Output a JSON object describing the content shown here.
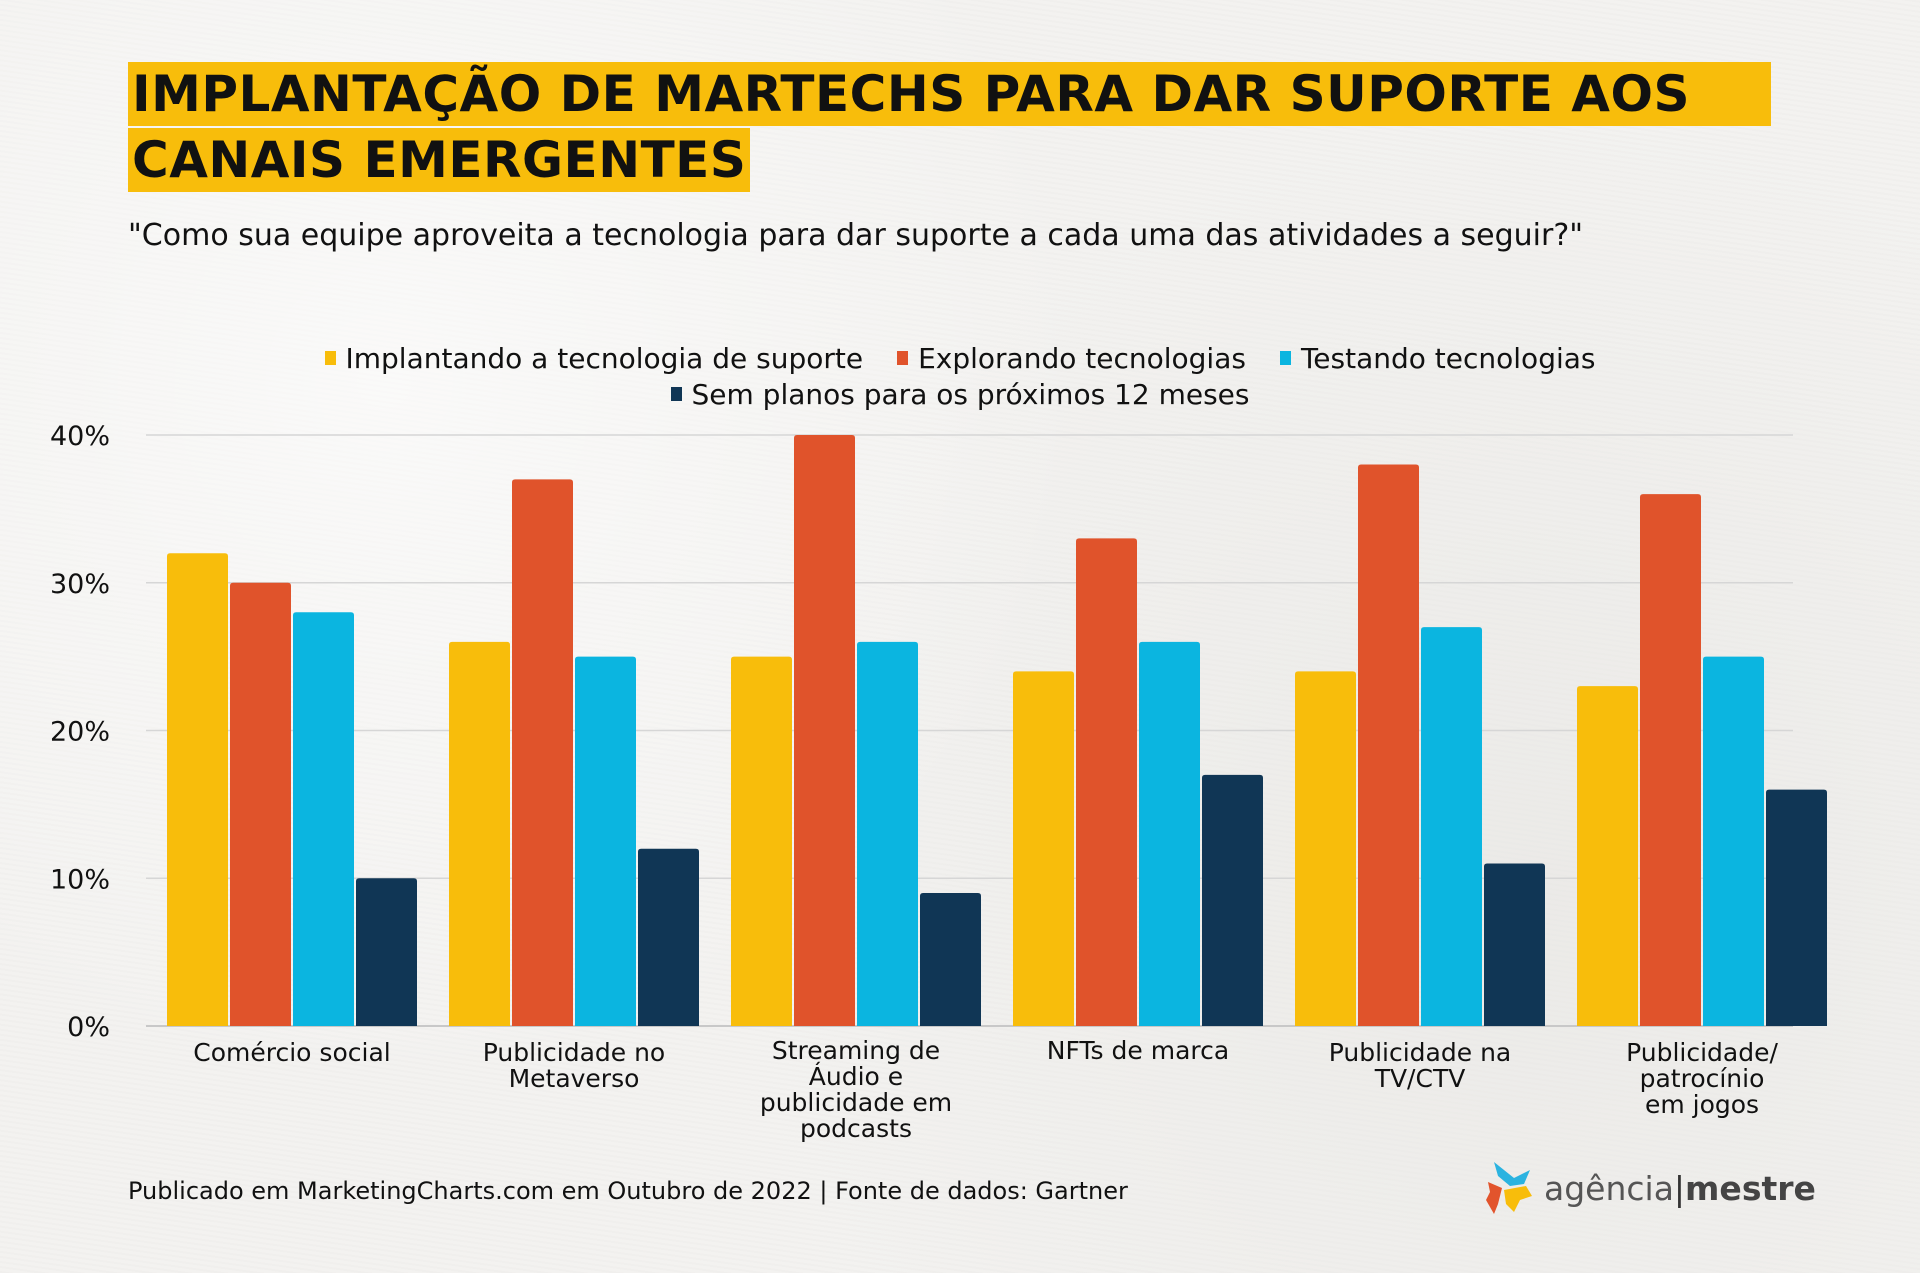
{
  "header": {
    "title_line1": "IMPLANTAÇÃO DE MARTECHS PARA DAR SUPORTE AOS",
    "title_line2": "CANAIS EMERGENTES",
    "subtitle": "\"Como sua equipe aproveita a tecnologia para dar suporte a cada uma das atividades a seguir?\""
  },
  "footer": {
    "source": "Publicado em MarketingCharts.com em Outubro de 2022 | Fonte de dados: Gartner"
  },
  "logo": {
    "icon": "agencia-mestre-logo-icon",
    "text_light": "agência",
    "separator": "|",
    "text_bold": "mestre"
  },
  "chart_data": {
    "type": "bar",
    "title": "IMPLANTAÇÃO DE MARTECHS PARA DAR SUPORTE AOS CANAIS EMERGENTES",
    "subtitle": "\"Como sua equipe aproveita a tecnologia para dar suporte a cada uma das atividades a seguir?\"",
    "xlabel": "",
    "ylabel": "",
    "ylim": [
      0,
      40
    ],
    "yticks": [
      0,
      10,
      20,
      30,
      40
    ],
    "ytick_labels": [
      "0%",
      "10%",
      "20%",
      "30%",
      "40%"
    ],
    "grid": true,
    "legend_position": "top-center",
    "categories": [
      "Comércio social",
      "Publicidade no Metaverso",
      "Streaming de Áudio e publicidade em podcasts",
      "NFTs de marca",
      "Publicidade na TV/CTV",
      "Publicidade/ patrocínio em jogos"
    ],
    "category_label_lines": [
      [
        "Comércio social"
      ],
      [
        "Publicidade no",
        "Metaverso"
      ],
      [
        "Streaming de",
        "Áudio e",
        "publicidade em",
        "podcasts"
      ],
      [
        "NFTs de marca"
      ],
      [
        "Publicidade na",
        "TV/CTV"
      ],
      [
        "Publicidade/",
        "patrocínio",
        "em jogos"
      ]
    ],
    "series": [
      {
        "name": "Implantando a tecnologia de suporte",
        "color": "#f8bd0b",
        "values": [
          32,
          26,
          25,
          24,
          24,
          23
        ]
      },
      {
        "name": "Explorando tecnologias",
        "color": "#e0532b",
        "values": [
          30,
          37,
          40,
          33,
          38,
          36
        ]
      },
      {
        "name": "Testando tecnologias",
        "color": "#0bb5e0",
        "values": [
          28,
          25,
          26,
          26,
          27,
          25
        ]
      },
      {
        "name": "Sem planos para os próximos 12 meses",
        "color": "#103655",
        "values": [
          10,
          12,
          9,
          17,
          11,
          16
        ]
      }
    ],
    "legend_rows": [
      [
        0,
        1,
        2
      ],
      [
        3
      ]
    ],
    "gridline_color": "#d6d6d6",
    "baseline_color": "#c8c8c8"
  }
}
